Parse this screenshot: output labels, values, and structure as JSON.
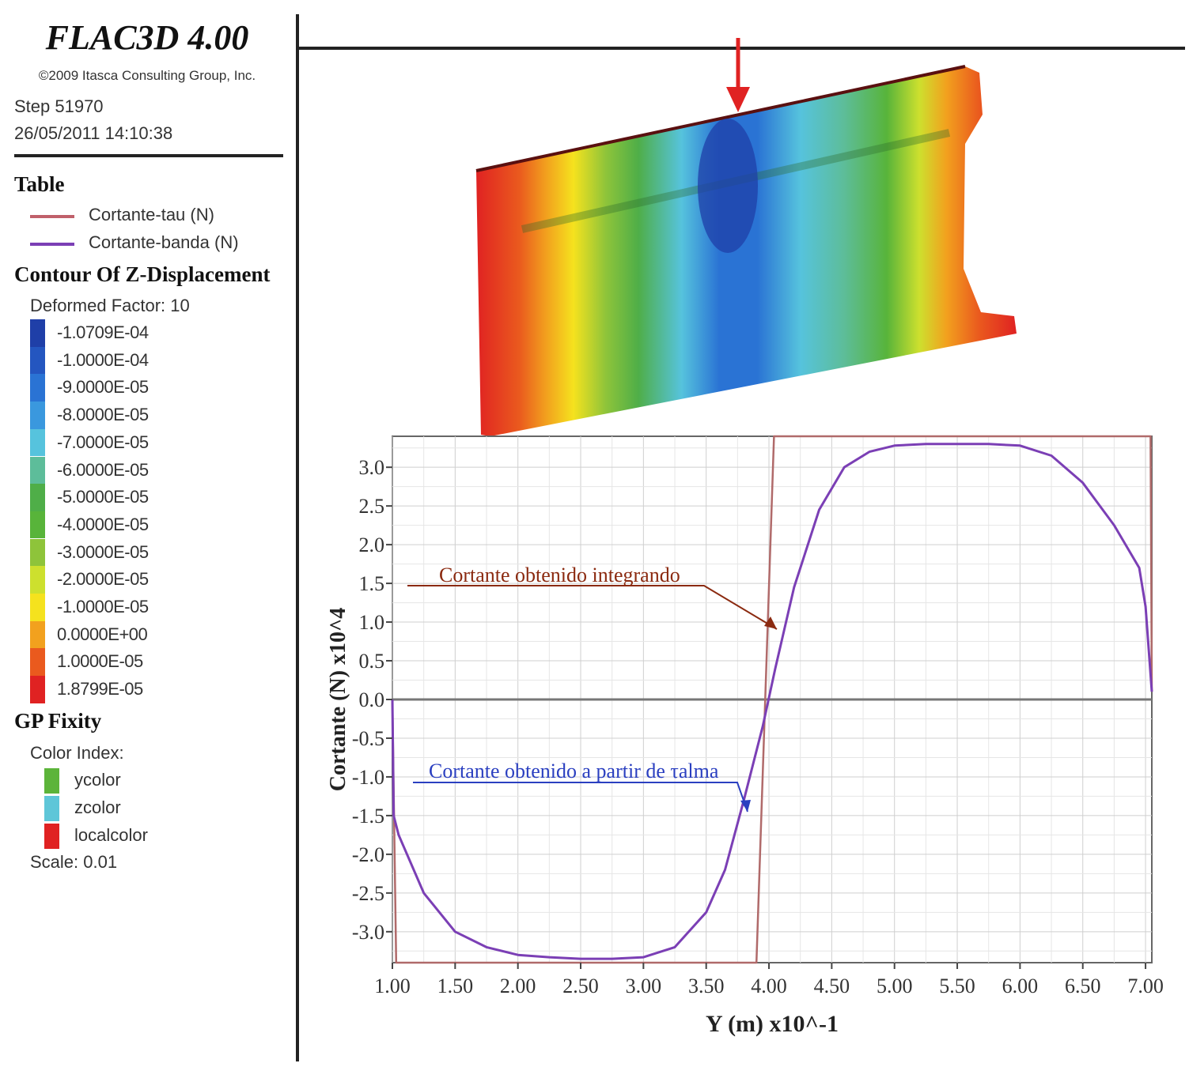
{
  "header": {
    "app_title": "FLAC3D 4.00",
    "copyright": "©2009 Itasca Consulting Group, Inc.",
    "step": "Step 51970",
    "datetime": "26/05/2011 14:10:38"
  },
  "table_legend": {
    "title": "Table",
    "items": [
      {
        "label": "Cortante-tau (N)",
        "color": "#c0606a"
      },
      {
        "label": "Cortante-banda (N)",
        "color": "#7b3fb5"
      }
    ]
  },
  "contour": {
    "title": "Contour Of Z-Displacement",
    "deformed_factor": "Deformed Factor: 10",
    "levels": [
      {
        "value": "-1.0709E-04",
        "color": "#1f3fa8"
      },
      {
        "value": "-1.0000E-04",
        "color": "#2456c0"
      },
      {
        "value": "-9.0000E-05",
        "color": "#2a73d4"
      },
      {
        "value": "-8.0000E-05",
        "color": "#3a98de"
      },
      {
        "value": "-7.0000E-05",
        "color": "#56c3dd"
      },
      {
        "value": "-6.0000E-05",
        "color": "#5dbd9a"
      },
      {
        "value": "-5.0000E-05",
        "color": "#4fae48"
      },
      {
        "value": "-4.0000E-05",
        "color": "#58b43a"
      },
      {
        "value": "-3.0000E-05",
        "color": "#8ec43a"
      },
      {
        "value": "-2.0000E-05",
        "color": "#cde02e"
      },
      {
        "value": "-1.0000E-05",
        "color": "#f5e21e"
      },
      {
        "value": "0.0000E+00",
        "color": "#f2a11e"
      },
      {
        "value": "1.0000E-05",
        "color": "#ea5a1e"
      },
      {
        "value": "1.8799E-05",
        "color": "#e02222"
      }
    ]
  },
  "fixity": {
    "title": "GP Fixity",
    "color_index": "Color Index:",
    "items": [
      {
        "label": "ycolor",
        "color": "#5cb43a"
      },
      {
        "label": "zcolor",
        "color": "#5ec6d8"
      },
      {
        "label": "localcolor",
        "color": "#e02222"
      }
    ],
    "scale": "Scale: 0.01"
  },
  "chart_data": {
    "type": "line",
    "xlabel": "Y (m) x10^-1",
    "ylabel": "Cortante (N) x10^4",
    "xlim": [
      1.0,
      7.05
    ],
    "ylim": [
      -3.4,
      3.4
    ],
    "xticks": [
      "1.00",
      "1.50",
      "2.00",
      "2.50",
      "3.00",
      "3.50",
      "4.00",
      "4.50",
      "5.00",
      "5.50",
      "6.00",
      "6.50",
      "7.00"
    ],
    "yticks": [
      "3.0",
      "2.5",
      "2.0",
      "1.5",
      "1.0",
      "0.5",
      "0.0",
      "-0.5",
      "-1.0",
      "-1.5",
      "-2.0",
      "-2.5",
      "-3.0"
    ],
    "grid": true,
    "series": [
      {
        "name": "Cortante-tau (N)",
        "color": "#b06a6a",
        "x": [
          1.0,
          1.03,
          1.06,
          3.9,
          4.04,
          7.0,
          7.04,
          7.05
        ],
        "y": [
          0.0,
          -3.4,
          -3.4,
          -3.4,
          3.4,
          3.4,
          3.4,
          0.1
        ]
      },
      {
        "name": "Cortante-banda (N)",
        "color": "#7b3fb5",
        "x": [
          1.0,
          1.01,
          1.05,
          1.25,
          1.5,
          1.75,
          2.0,
          2.25,
          2.5,
          2.75,
          3.0,
          3.25,
          3.5,
          3.65,
          3.8,
          3.95,
          4.05,
          4.2,
          4.4,
          4.6,
          4.8,
          5.0,
          5.25,
          5.5,
          5.75,
          6.0,
          6.25,
          6.5,
          6.75,
          6.95,
          7.0,
          7.05
        ],
        "y": [
          0.0,
          -1.5,
          -1.75,
          -2.5,
          -3.0,
          -3.2,
          -3.3,
          -3.33,
          -3.35,
          -3.35,
          -3.33,
          -3.2,
          -2.75,
          -2.2,
          -1.3,
          -0.35,
          0.4,
          1.45,
          2.45,
          3.0,
          3.2,
          3.28,
          3.3,
          3.3,
          3.3,
          3.28,
          3.15,
          2.8,
          2.25,
          1.7,
          1.2,
          0.1
        ]
      }
    ],
    "annotations": [
      {
        "text": "Cortante obtenido integrando",
        "color": "#8b2a10"
      },
      {
        "text": "Cortante obtenido a partir de τalma",
        "color": "#2a3fc0"
      }
    ]
  }
}
